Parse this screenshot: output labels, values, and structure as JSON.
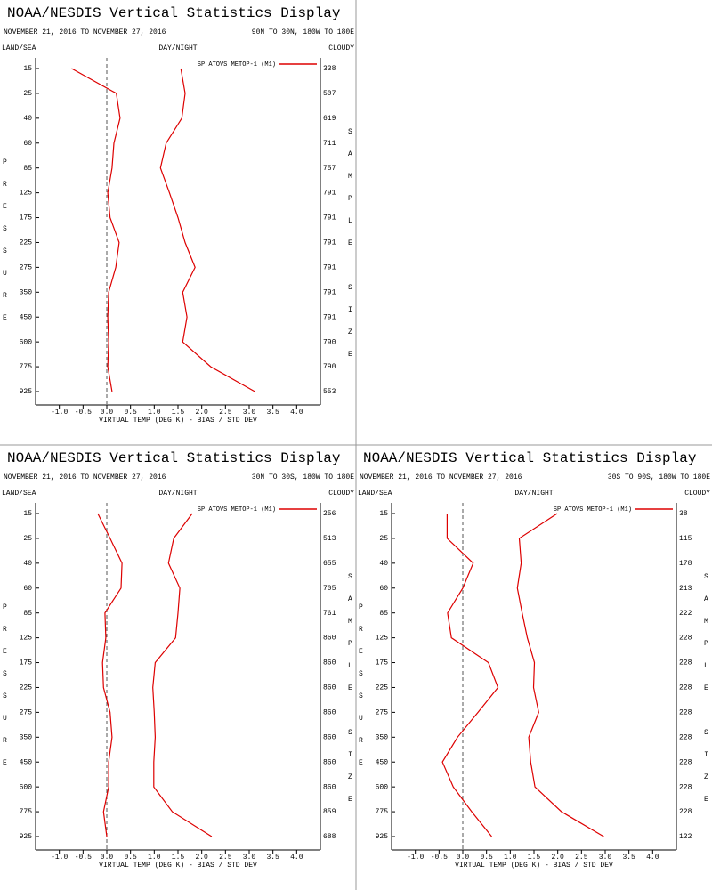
{
  "chart_data": [
    {
      "type": "line",
      "title": "NOAA/NESDIS Vertical Statistics Display",
      "date_range": "NOVEMBER 21, 2016 TO NOVEMBER 27, 2016",
      "region": "90N TO 30N, 180W TO 180E",
      "left_header": "LAND/SEA",
      "center_header": "DAY/NIGHT",
      "right_header": "CLOUDY",
      "ylabel": "PRESSURE",
      "y2label": "SAMPLE SIZE",
      "xlabel": "VIRTUAL TEMP (DEG K) - BIAS / STD DEV",
      "categories": [
        15,
        25,
        40,
        60,
        85,
        125,
        175,
        225,
        275,
        350,
        450,
        600,
        775,
        925
      ],
      "sample_size": [
        338,
        507,
        619,
        711,
        757,
        791,
        791,
        791,
        791,
        791,
        791,
        790,
        790,
        553
      ],
      "xlim": [
        -1.5,
        4.5
      ],
      "xticks": [
        {
          "value": -1,
          "label": "-1.0"
        },
        -0.5,
        {
          "value": 0,
          "label": "0.0"
        },
        0.5,
        {
          "value": 1,
          "label": "1.0"
        },
        1.5,
        {
          "value": 2,
          "label": "2.0"
        },
        2.5,
        {
          "value": 3,
          "label": "3.0"
        },
        3.5,
        {
          "value": 4,
          "label": "4.0"
        }
      ],
      "series": [
        {
          "name": "SP ATOVS METOP-1 (M1)",
          "color": "#dd0000",
          "bias": [
            -0.74,
            0.2,
            0.28,
            0.15,
            0.11,
            0.02,
            0.07,
            0.26,
            0.19,
            0.04,
            0.02,
            0.04,
            0.02,
            0.11
          ],
          "std_dev": [
            1.56,
            1.65,
            1.58,
            1.25,
            1.13,
            1.32,
            1.5,
            1.65,
            1.86,
            1.6,
            1.69,
            1.6,
            2.19,
            3.12
          ]
        }
      ]
    },
    {
      "type": "line",
      "title": "NOAA/NESDIS Vertical Statistics Display",
      "date_range": "NOVEMBER 21, 2016 TO NOVEMBER 27, 2016",
      "region": "30N TO 30S, 180W TO 180E",
      "left_header": "LAND/SEA",
      "center_header": "DAY/NIGHT",
      "right_header": "CLOUDY",
      "ylabel": "PRESSURE",
      "y2label": "SAMPLE SIZE",
      "xlabel": "VIRTUAL TEMP (DEG K) - BIAS / STD DEV",
      "categories": [
        15,
        25,
        40,
        60,
        85,
        125,
        175,
        225,
        275,
        350,
        450,
        600,
        775,
        925
      ],
      "sample_size": [
        256,
        513,
        655,
        705,
        761,
        860,
        860,
        860,
        860,
        860,
        860,
        860,
        859,
        688
      ],
      "xlim": [
        -1.5,
        4.5
      ],
      "xticks": [
        {
          "value": -1,
          "label": "-1.0"
        },
        -0.5,
        {
          "value": 0,
          "label": "0.0"
        },
        0.5,
        {
          "value": 1,
          "label": "1.0"
        },
        1.5,
        {
          "value": 2,
          "label": "2.0"
        },
        2.5,
        {
          "value": 3,
          "label": "3.0"
        },
        3.5,
        {
          "value": 4,
          "label": "4.0"
        }
      ],
      "series": [
        {
          "name": "SP ATOVS METOP-1 (M1)",
          "color": "#dd0000",
          "bias": [
            -0.19,
            0.07,
            0.32,
            0.3,
            -0.04,
            -0.02,
            -0.09,
            -0.07,
            0.07,
            0.11,
            0.04,
            0.04,
            -0.07,
            0
          ],
          "std_dev": [
            1.8,
            1.41,
            1.3,
            1.54,
            1.5,
            1.45,
            1.02,
            0.97,
            1.0,
            1.02,
            0.99,
            0.99,
            1.38,
            2.21
          ]
        }
      ]
    },
    {
      "type": "line",
      "title": "NOAA/NESDIS Vertical Statistics Display",
      "date_range": "NOVEMBER 21, 2016 TO NOVEMBER 27, 2016",
      "region": "30S TO 90S, 180W TO 180E",
      "left_header": "LAND/SEA",
      "center_header": "DAY/NIGHT",
      "right_header": "CLOUDY",
      "ylabel": "PRESSURE",
      "y2label": "SAMPLE SIZE",
      "xlabel": "VIRTUAL TEMP (DEG K) - BIAS / STD DEV",
      "categories": [
        15,
        25,
        40,
        60,
        85,
        125,
        175,
        225,
        275,
        350,
        450,
        600,
        775,
        925
      ],
      "sample_size": [
        38,
        115,
        178,
        213,
        222,
        228,
        228,
        228,
        228,
        228,
        228,
        228,
        228,
        122
      ],
      "xlim": [
        -1.5,
        4.5
      ],
      "xticks": [
        {
          "value": -1,
          "label": "-1.0"
        },
        -0.5,
        {
          "value": 0,
          "label": "0.0"
        },
        0.5,
        {
          "value": 1,
          "label": "1.0"
        },
        1.5,
        {
          "value": 2,
          "label": "2.0"
        },
        2.5,
        {
          "value": 3,
          "label": "3.0"
        },
        3.5,
        {
          "value": 4,
          "label": "4.0"
        }
      ],
      "series": [
        {
          "name": "SP ATOVS METOP-1 (M1)",
          "color": "#dd0000",
          "bias": [
            -0.33,
            -0.33,
            0.22,
            0,
            -0.32,
            -0.24,
            0.54,
            0.74,
            0.32,
            -0.11,
            -0.43,
            -0.2,
            0.19,
            0.61
          ],
          "std_dev": [
            1.99,
            1.19,
            1.23,
            1.15,
            1.25,
            1.36,
            1.51,
            1.49,
            1.6,
            1.39,
            1.43,
            1.52,
            2.08,
            2.97
          ]
        }
      ]
    }
  ]
}
